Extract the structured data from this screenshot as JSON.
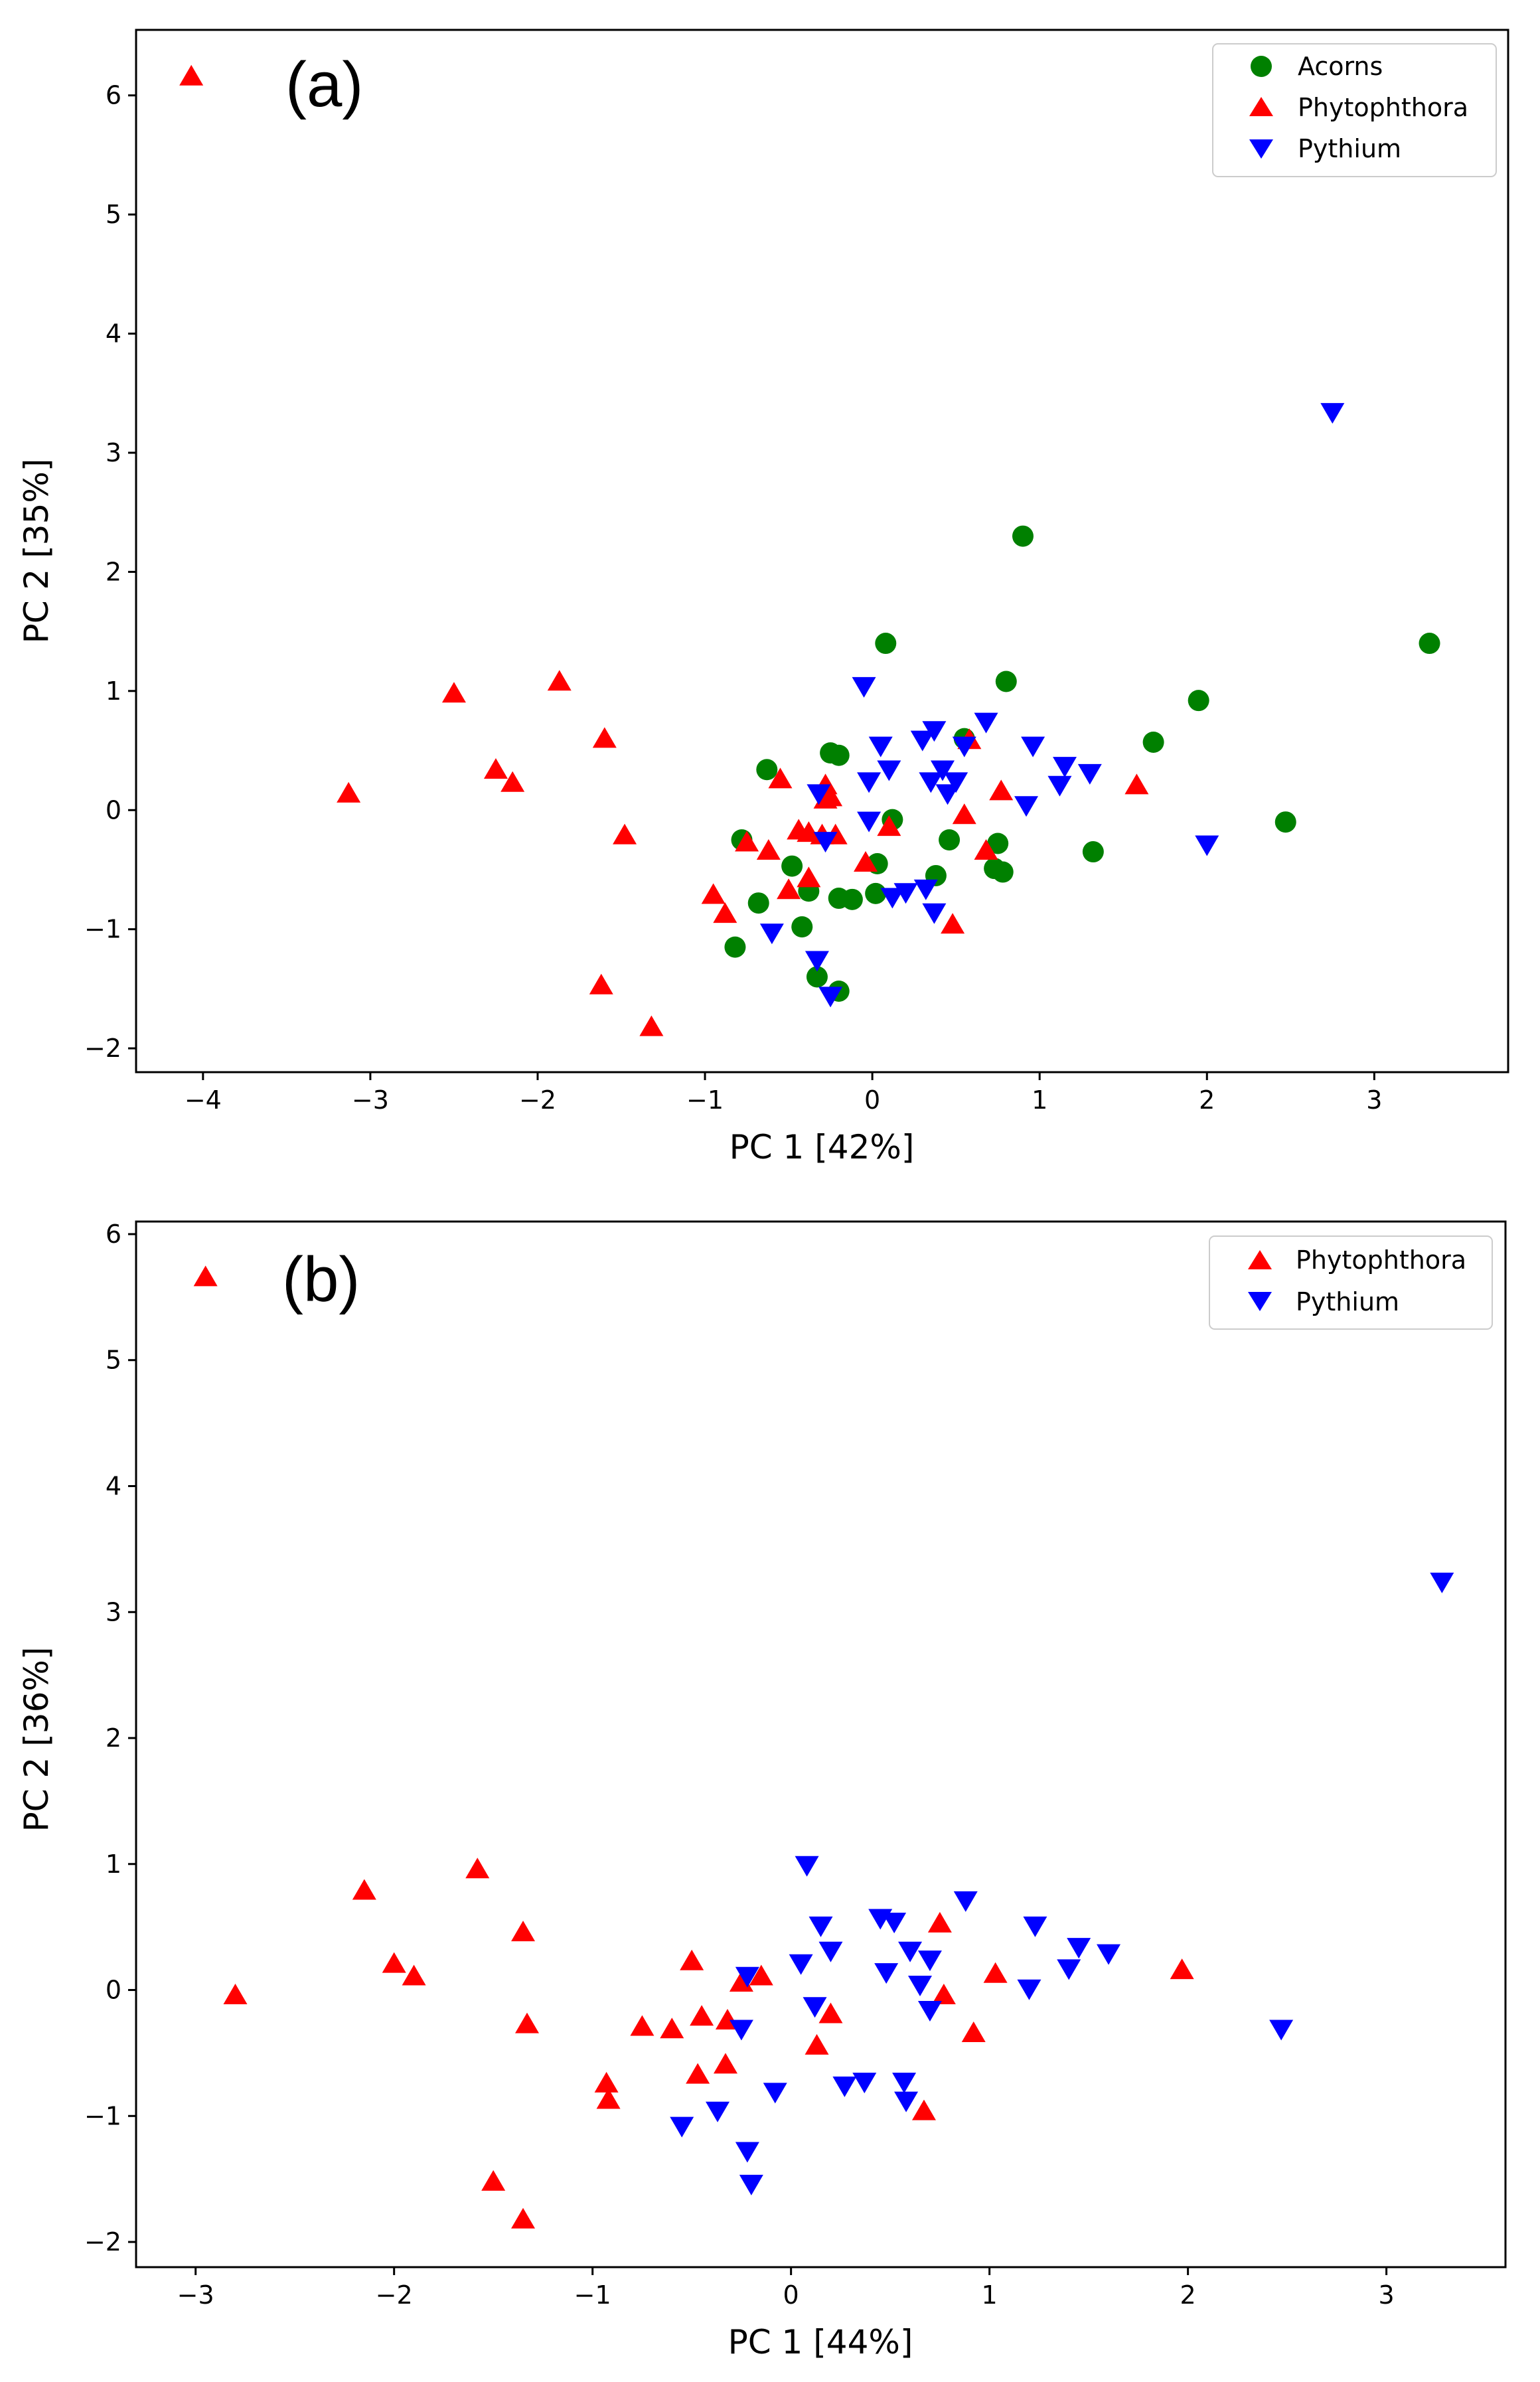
{
  "chart_data": [
    {
      "type": "scatter",
      "panel_label": "(a)",
      "xlabel": "PC 1 [42%]",
      "ylabel": "PC 2 [35%]",
      "xlim": [
        -4.4,
        3.8
      ],
      "ylim": [
        -2.2,
        6.55
      ],
      "xticks": [
        -4,
        -3,
        -2,
        -1,
        0,
        1,
        2,
        3
      ],
      "yticks": [
        -2,
        -1,
        0,
        1,
        2,
        3,
        4,
        5,
        6
      ],
      "grid": false,
      "legend_position": "top-right",
      "series": [
        {
          "name": "Acorns",
          "marker": "circle",
          "color": "#008000",
          "points": [
            [
              0.9,
              2.3
            ],
            [
              3.33,
              1.4
            ],
            [
              0.08,
              1.4
            ],
            [
              0.8,
              1.08
            ],
            [
              1.95,
              0.92
            ],
            [
              1.68,
              0.57
            ],
            [
              0.55,
              0.6
            ],
            [
              -0.25,
              0.48
            ],
            [
              -0.2,
              0.46
            ],
            [
              -0.63,
              0.34
            ],
            [
              0.12,
              -0.08
            ],
            [
              2.47,
              -0.1
            ],
            [
              1.32,
              -0.35
            ],
            [
              -0.78,
              -0.25
            ],
            [
              0.46,
              -0.25
            ],
            [
              0.75,
              -0.28
            ],
            [
              0.03,
              -0.45
            ],
            [
              -0.48,
              -0.47
            ],
            [
              0.38,
              -0.55
            ],
            [
              0.73,
              -0.49
            ],
            [
              0.78,
              -0.52
            ],
            [
              -0.38,
              -0.68
            ],
            [
              0.02,
              -0.7
            ],
            [
              -0.2,
              -0.74
            ],
            [
              -0.12,
              -0.75
            ],
            [
              -0.68,
              -0.78
            ],
            [
              -0.42,
              -0.98
            ],
            [
              -0.82,
              -1.15
            ],
            [
              -0.33,
              -1.4
            ],
            [
              -0.2,
              -1.52
            ]
          ]
        },
        {
          "name": "Phytophthora",
          "marker": "triangle-up",
          "color": "#ff0000",
          "points": [
            [
              -4.07,
              6.15
            ],
            [
              -1.87,
              1.07
            ],
            [
              -2.5,
              0.97
            ],
            [
              -1.6,
              0.59
            ],
            [
              -2.25,
              0.33
            ],
            [
              -2.15,
              0.22
            ],
            [
              -3.13,
              0.13
            ],
            [
              -0.55,
              0.25
            ],
            [
              -0.28,
              0.2
            ],
            [
              -1.48,
              -0.22
            ],
            [
              -0.75,
              -0.28
            ],
            [
              -0.62,
              -0.35
            ],
            [
              -0.44,
              -0.18
            ],
            [
              -0.38,
              -0.2
            ],
            [
              -0.3,
              -0.22
            ],
            [
              -0.22,
              -0.22
            ],
            [
              -0.28,
              0.08
            ],
            [
              -0.25,
              0.1
            ],
            [
              0.1,
              -0.15
            ],
            [
              0.58,
              0.58
            ],
            [
              0.77,
              0.15
            ],
            [
              1.58,
              0.2
            ],
            [
              0.55,
              -0.05
            ],
            [
              0.68,
              -0.35
            ],
            [
              -0.04,
              -0.45
            ],
            [
              -0.38,
              -0.58
            ],
            [
              -0.5,
              -0.68
            ],
            [
              -0.95,
              -0.72
            ],
            [
              -0.88,
              -0.88
            ],
            [
              0.48,
              -0.97
            ],
            [
              -1.62,
              -1.48
            ],
            [
              -1.32,
              -1.83
            ]
          ]
        },
        {
          "name": "Pythium",
          "marker": "triangle-down",
          "color": "#0000ff",
          "points": [
            [
              2.75,
              3.35
            ],
            [
              -0.05,
              1.05
            ],
            [
              0.37,
              0.68
            ],
            [
              0.68,
              0.75
            ],
            [
              0.05,
              0.55
            ],
            [
              0.3,
              0.6
            ],
            [
              0.55,
              0.55
            ],
            [
              0.96,
              0.55
            ],
            [
              0.1,
              0.35
            ],
            [
              0.42,
              0.35
            ],
            [
              1.15,
              0.38
            ],
            [
              1.3,
              0.32
            ],
            [
              -0.02,
              0.25
            ],
            [
              0.35,
              0.25
            ],
            [
              0.5,
              0.25
            ],
            [
              0.45,
              0.15
            ],
            [
              1.12,
              0.22
            ],
            [
              -0.32,
              0.15
            ],
            [
              0.92,
              0.05
            ],
            [
              -0.02,
              -0.08
            ],
            [
              -0.28,
              -0.25
            ],
            [
              2.0,
              -0.28
            ],
            [
              0.32,
              -0.65
            ],
            [
              0.2,
              -0.68
            ],
            [
              0.12,
              -0.72
            ],
            [
              0.37,
              -0.85
            ],
            [
              -0.6,
              -1.02
            ],
            [
              -0.33,
              -1.25
            ],
            [
              -0.25,
              -1.55
            ]
          ]
        }
      ]
    },
    {
      "type": "scatter",
      "panel_label": "(b)",
      "xlabel": "PC 1 [44%]",
      "ylabel": "PC 2 [36%]",
      "xlim": [
        -3.3,
        3.6
      ],
      "ylim": [
        -2.2,
        6.1
      ],
      "xticks": [
        -3,
        -2,
        -1,
        0,
        1,
        2,
        3
      ],
      "yticks": [
        -2,
        -1,
        0,
        1,
        2,
        3,
        4,
        5,
        6
      ],
      "grid": false,
      "legend_position": "top-right",
      "series": [
        {
          "name": "Phytophthora",
          "marker": "triangle-up",
          "color": "#ff0000",
          "points": [
            [
              -2.95,
              5.65
            ],
            [
              -1.58,
              0.95
            ],
            [
              -2.15,
              0.78
            ],
            [
              -1.35,
              0.45
            ],
            [
              -2.0,
              0.2
            ],
            [
              -1.9,
              0.1
            ],
            [
              -2.8,
              -0.05
            ],
            [
              -0.5,
              0.22
            ],
            [
              -0.25,
              0.05
            ],
            [
              -0.15,
              0.1
            ],
            [
              0.2,
              -0.2
            ],
            [
              -0.45,
              -0.22
            ],
            [
              -0.32,
              -0.25
            ],
            [
              -1.33,
              -0.28
            ],
            [
              -0.75,
              -0.3
            ],
            [
              -0.6,
              -0.32
            ],
            [
              0.75,
              0.52
            ],
            [
              1.03,
              0.12
            ],
            [
              1.97,
              0.15
            ],
            [
              0.77,
              -0.05
            ],
            [
              0.92,
              -0.35
            ],
            [
              0.13,
              -0.45
            ],
            [
              -0.33,
              -0.6
            ],
            [
              -0.47,
              -0.68
            ],
            [
              -0.93,
              -0.75
            ],
            [
              -0.92,
              -0.88
            ],
            [
              0.67,
              -0.97
            ],
            [
              -1.5,
              -1.53
            ],
            [
              -1.35,
              -1.83
            ]
          ]
        },
        {
          "name": "Pythium",
          "marker": "triangle-down",
          "color": "#0000ff",
          "points": [
            [
              3.28,
              3.25
            ],
            [
              0.08,
              1.0
            ],
            [
              0.88,
              0.72
            ],
            [
              0.45,
              0.58
            ],
            [
              0.52,
              0.55
            ],
            [
              0.15,
              0.52
            ],
            [
              1.23,
              0.52
            ],
            [
              0.6,
              0.32
            ],
            [
              0.2,
              0.32
            ],
            [
              1.45,
              0.35
            ],
            [
              1.6,
              0.3
            ],
            [
              0.7,
              0.25
            ],
            [
              0.05,
              0.22
            ],
            [
              0.48,
              0.15
            ],
            [
              1.4,
              0.18
            ],
            [
              -0.22,
              0.12
            ],
            [
              0.65,
              0.05
            ],
            [
              1.2,
              0.02
            ],
            [
              0.7,
              -0.15
            ],
            [
              0.12,
              -0.12
            ],
            [
              -0.25,
              -0.3
            ],
            [
              2.47,
              -0.3
            ],
            [
              0.37,
              -0.72
            ],
            [
              0.27,
              -0.75
            ],
            [
              0.57,
              -0.72
            ],
            [
              -0.08,
              -0.8
            ],
            [
              0.58,
              -0.87
            ],
            [
              -0.37,
              -0.95
            ],
            [
              -0.55,
              -1.07
            ],
            [
              -0.22,
              -1.27
            ],
            [
              -0.2,
              -1.53
            ]
          ]
        }
      ]
    }
  ]
}
